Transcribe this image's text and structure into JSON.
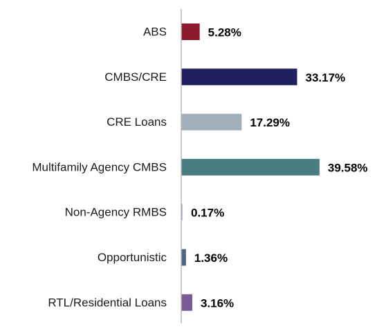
{
  "chart_data": {
    "type": "bar",
    "orientation": "horizontal",
    "categories": [
      "ABS",
      "CMBS/CRE",
      "CRE Loans",
      "Multifamily Agency CMBS",
      "Non-Agency RMBS",
      "Opportunistic",
      "RTL/Residential Loans"
    ],
    "values": [
      5.28,
      33.17,
      17.29,
      39.58,
      0.17,
      1.36,
      3.16
    ],
    "value_labels": [
      "5.28%",
      "33.17%",
      "17.29%",
      "39.58%",
      "0.17%",
      "1.36%",
      "3.16%"
    ],
    "colors": [
      "#8b1a2b",
      "#1f1f5e",
      "#9fb0ba",
      "#4a7d80",
      "#7a8fa8",
      "#4f6580",
      "#7a5a94"
    ],
    "title": "",
    "xlabel": "",
    "ylabel": "",
    "xlim": [
      0,
      40
    ],
    "grid": false,
    "legend": "none"
  }
}
